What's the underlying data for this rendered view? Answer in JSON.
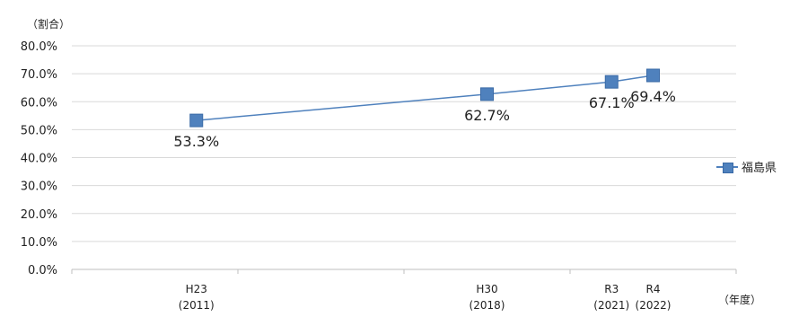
{
  "chart_data": {
    "type": "line",
    "categories": [
      "H23\n(2011)",
      "H30\n(2018)",
      "R3\n(2021)",
      "R4\n(2022)"
    ],
    "x_years": [
      2011,
      2018,
      2021,
      2022
    ],
    "series": [
      {
        "name": "福島県",
        "values": [
          53.3,
          62.7,
          67.1,
          69.4
        ],
        "data_labels": [
          "53.3%",
          "62.7%",
          "67.1%",
          "69.4%"
        ],
        "color": "#4f81bd"
      }
    ],
    "yticks": [
      "0.0%",
      "10.0%",
      "20.0%",
      "30.0%",
      "40.0%",
      "50.0%",
      "60.0%",
      "70.0%",
      "80.0%"
    ],
    "ylim": [
      0,
      80
    ],
    "ylabel": "（割合）",
    "xunit": "（年度）",
    "grid": true,
    "legend_placement": "right"
  }
}
